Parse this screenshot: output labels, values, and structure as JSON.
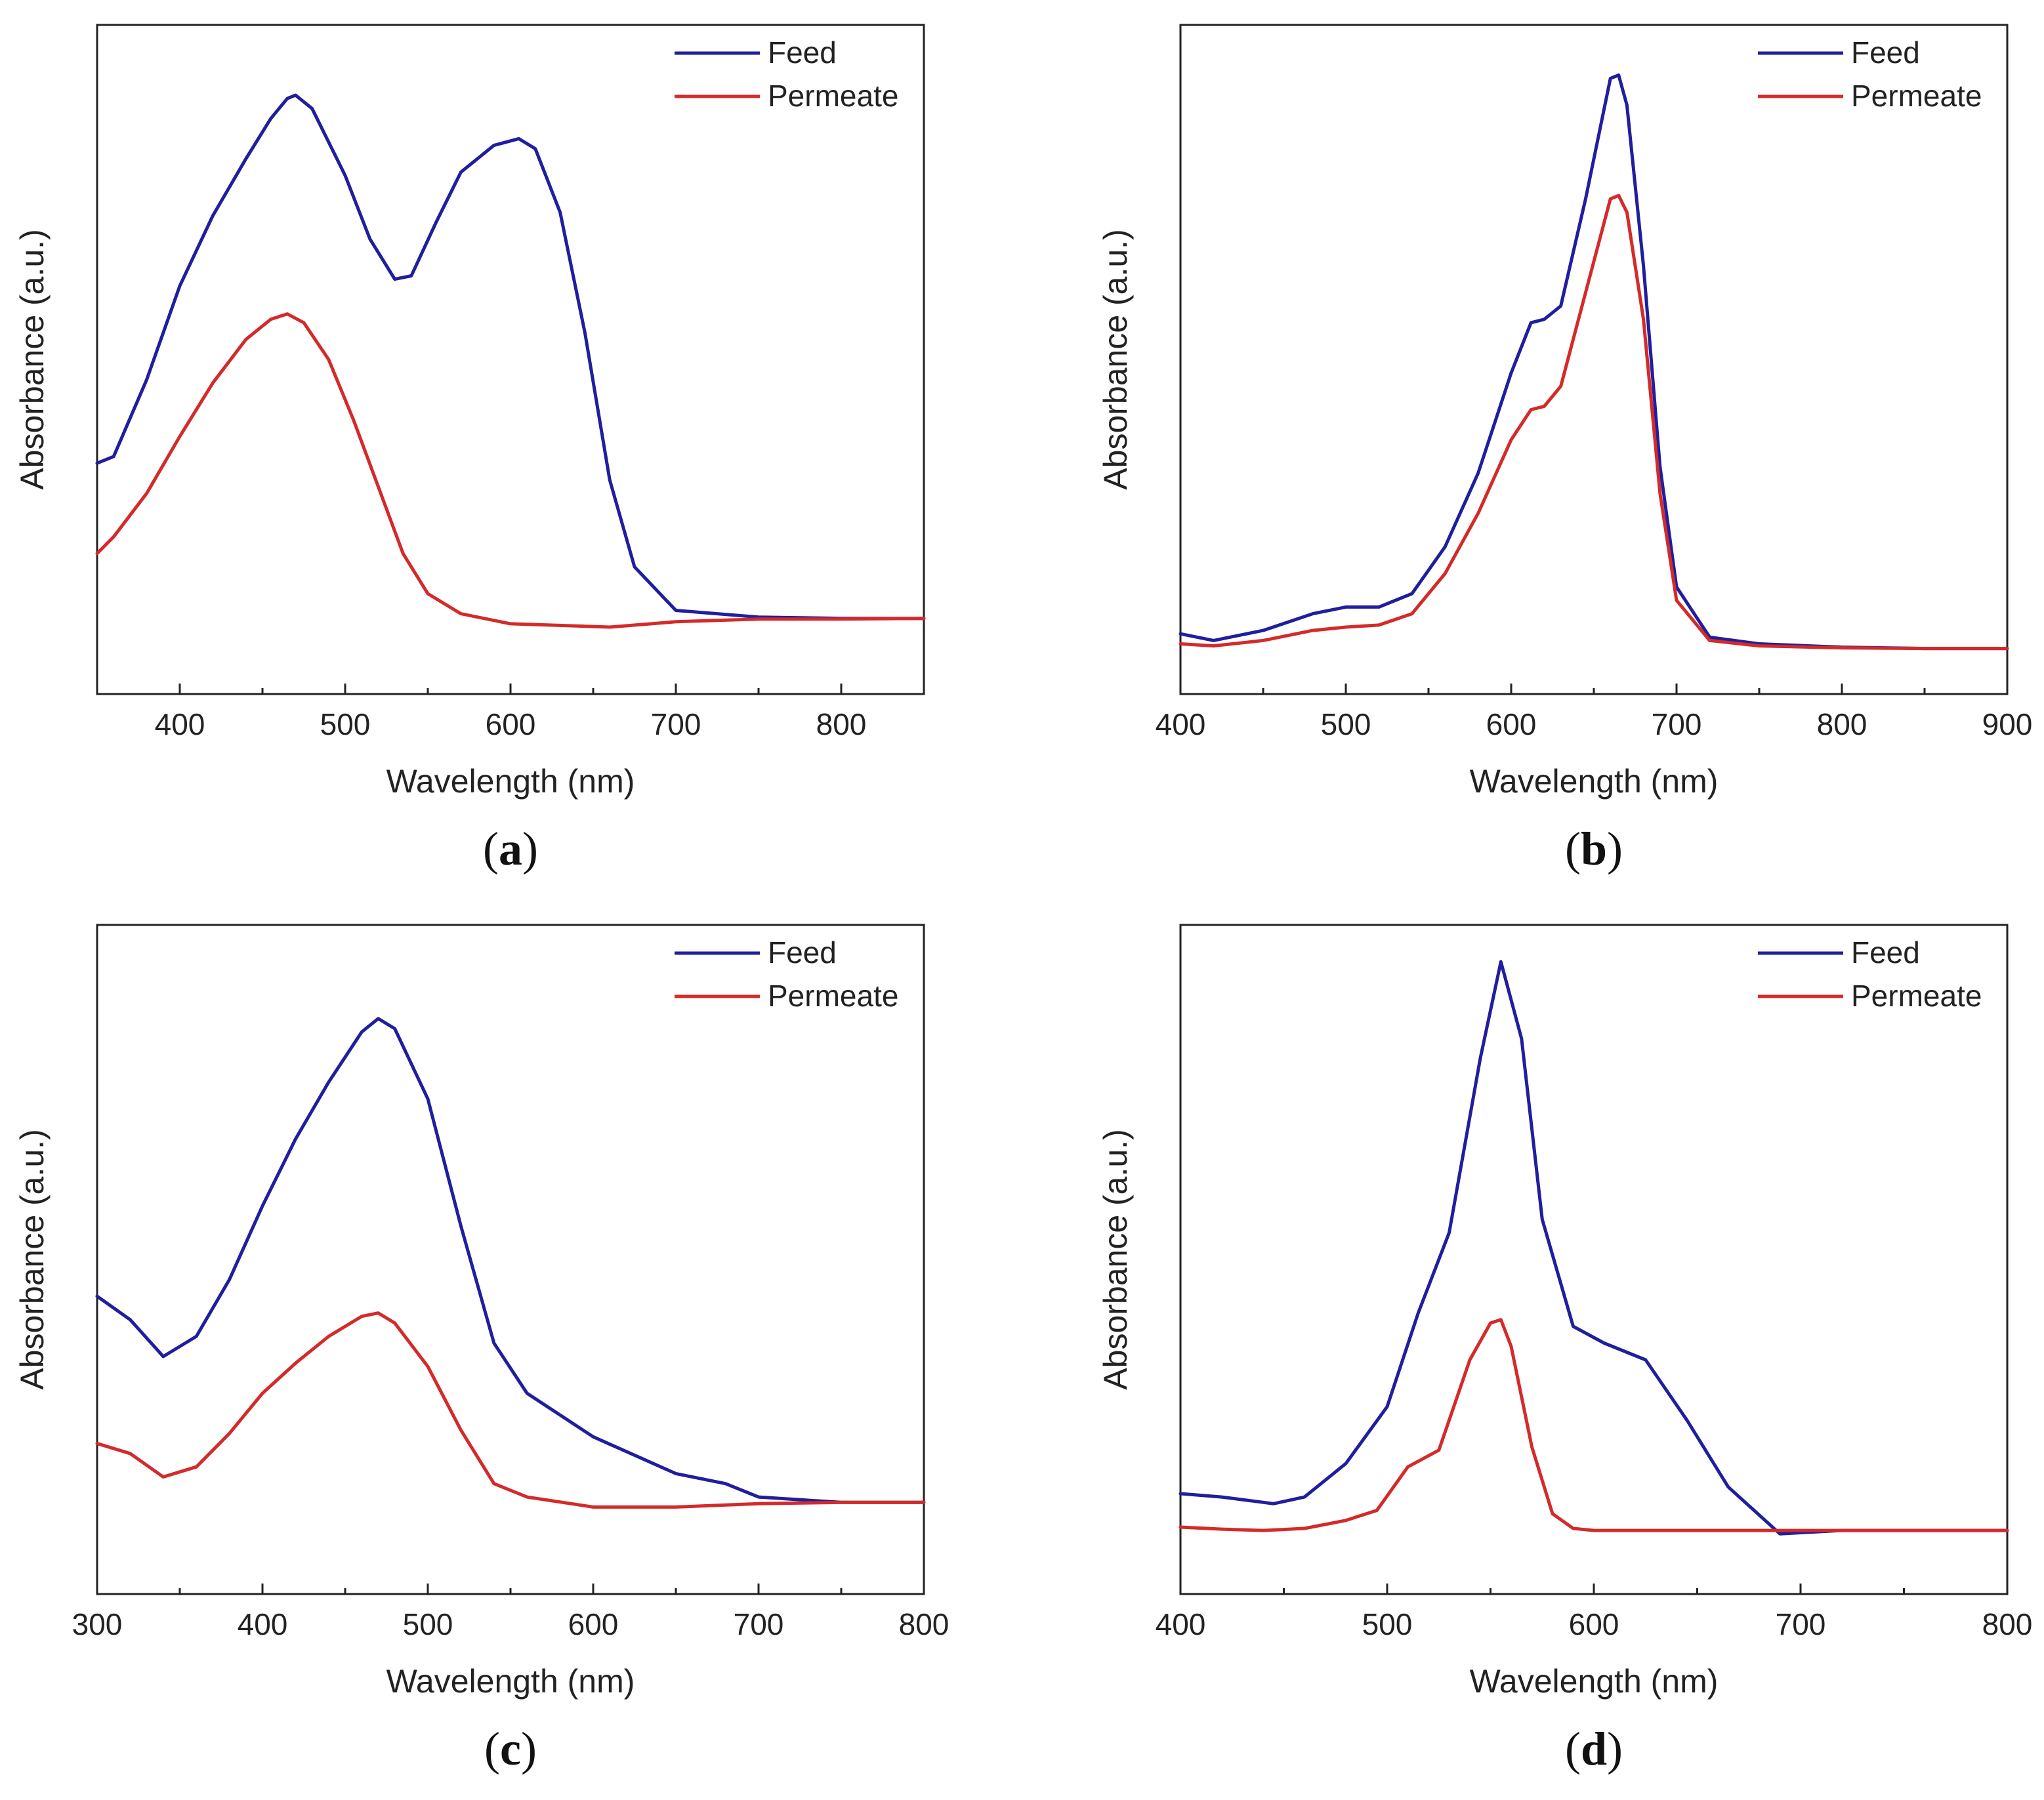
{
  "colors": {
    "feed": "#1f1f9e",
    "permeate": "#d42a2a",
    "axis": "#222222"
  },
  "chart_data": [
    {
      "type": "line",
      "panel": "(a)",
      "caption_letter": "a",
      "xlabel": "Wavelength (nm)",
      "ylabel": "Absorbance (a.u.)",
      "xlim": [
        350,
        850
      ],
      "ylim": [
        0,
        1.0
      ],
      "xticks": [
        400,
        500,
        600,
        700,
        800
      ],
      "legend": [
        "Feed",
        "Permeate"
      ],
      "legend_position": "top-right",
      "series": [
        {
          "name": "Feed",
          "x": [
            350,
            360,
            380,
            400,
            420,
            440,
            455,
            465,
            470,
            480,
            500,
            515,
            530,
            540,
            555,
            570,
            590,
            605,
            615,
            630,
            645,
            660,
            675,
            700,
            750,
            800,
            850
          ],
          "y": [
            0.345,
            0.355,
            0.47,
            0.61,
            0.715,
            0.8,
            0.86,
            0.89,
            0.895,
            0.875,
            0.775,
            0.68,
            0.62,
            0.625,
            0.705,
            0.78,
            0.82,
            0.83,
            0.815,
            0.72,
            0.54,
            0.32,
            0.19,
            0.125,
            0.115,
            0.113,
            0.113
          ]
        },
        {
          "name": "Permeate",
          "x": [
            350,
            360,
            380,
            400,
            420,
            440,
            455,
            465,
            475,
            490,
            505,
            520,
            535,
            550,
            570,
            600,
            660,
            700,
            750,
            800,
            850
          ],
          "y": [
            0.21,
            0.235,
            0.3,
            0.385,
            0.465,
            0.53,
            0.56,
            0.568,
            0.555,
            0.5,
            0.41,
            0.31,
            0.21,
            0.15,
            0.12,
            0.105,
            0.1,
            0.108,
            0.112,
            0.112,
            0.113
          ]
        }
      ]
    },
    {
      "type": "line",
      "panel": "(b)",
      "caption_letter": "b",
      "xlabel": "Wavelength (nm)",
      "ylabel": "Absorbance (a.u.)",
      "xlim": [
        400,
        900
      ],
      "ylim": [
        0,
        1.0
      ],
      "xticks": [
        400,
        500,
        600,
        700,
        800,
        900
      ],
      "legend": [
        "Feed",
        "Permeate"
      ],
      "legend_position": "top-right",
      "series": [
        {
          "name": "Feed",
          "x": [
            400,
            420,
            450,
            480,
            500,
            520,
            540,
            560,
            580,
            600,
            612,
            620,
            630,
            645,
            660,
            665,
            670,
            680,
            690,
            700,
            720,
            750,
            800,
            850,
            900
          ],
          "y": [
            0.09,
            0.08,
            0.095,
            0.12,
            0.13,
            0.13,
            0.15,
            0.22,
            0.33,
            0.48,
            0.555,
            0.56,
            0.58,
            0.74,
            0.92,
            0.925,
            0.88,
            0.64,
            0.34,
            0.16,
            0.085,
            0.075,
            0.07,
            0.068,
            0.068
          ]
        },
        {
          "name": "Permeate",
          "x": [
            400,
            420,
            450,
            480,
            500,
            520,
            540,
            560,
            580,
            600,
            612,
            620,
            630,
            645,
            660,
            665,
            670,
            680,
            690,
            700,
            720,
            750,
            800,
            850,
            900
          ],
          "y": [
            0.075,
            0.072,
            0.08,
            0.095,
            0.1,
            0.103,
            0.12,
            0.18,
            0.27,
            0.38,
            0.425,
            0.43,
            0.46,
            0.6,
            0.74,
            0.745,
            0.72,
            0.56,
            0.3,
            0.14,
            0.08,
            0.072,
            0.069,
            0.068,
            0.068
          ]
        }
      ]
    },
    {
      "type": "line",
      "panel": "(c)",
      "caption_letter": "c",
      "xlabel": "Wavelength (nm)",
      "ylabel": "Absorbance (a.u.)",
      "xlim": [
        300,
        800
      ],
      "ylim": [
        0,
        1.0
      ],
      "xticks": [
        300,
        400,
        500,
        600,
        700,
        800
      ],
      "legend": [
        "Feed",
        "Permeate"
      ],
      "legend_position": "top-right",
      "series": [
        {
          "name": "Feed",
          "x": [
            300,
            320,
            340,
            360,
            380,
            400,
            420,
            440,
            460,
            470,
            480,
            500,
            520,
            540,
            560,
            600,
            650,
            680,
            700,
            750,
            800
          ],
          "y": [
            0.445,
            0.41,
            0.355,
            0.385,
            0.47,
            0.58,
            0.68,
            0.765,
            0.84,
            0.86,
            0.845,
            0.74,
            0.55,
            0.375,
            0.3,
            0.235,
            0.18,
            0.165,
            0.145,
            0.137,
            0.137
          ]
        },
        {
          "name": "Permeate",
          "x": [
            300,
            320,
            340,
            360,
            380,
            400,
            420,
            440,
            460,
            470,
            480,
            500,
            520,
            540,
            560,
            600,
            650,
            700,
            750,
            800
          ],
          "y": [
            0.225,
            0.21,
            0.175,
            0.19,
            0.24,
            0.3,
            0.345,
            0.385,
            0.415,
            0.42,
            0.405,
            0.34,
            0.245,
            0.165,
            0.145,
            0.13,
            0.13,
            0.135,
            0.137,
            0.137
          ]
        }
      ]
    },
    {
      "type": "line",
      "panel": "(d)",
      "caption_letter": "d",
      "xlabel": "Wavelength (nm)",
      "ylabel": "Absorbance (a.u.)",
      "xlim": [
        400,
        800
      ],
      "ylim": [
        0,
        1.0
      ],
      "xticks": [
        400,
        500,
        600,
        700,
        800
      ],
      "legend": [
        "Feed",
        "Permeate"
      ],
      "legend_position": "top-right",
      "series": [
        {
          "name": "Feed",
          "x": [
            400,
            420,
            445,
            460,
            480,
            500,
            515,
            530,
            545,
            555,
            565,
            575,
            590,
            605,
            625,
            645,
            665,
            690,
            720,
            760,
            800
          ],
          "y": [
            0.15,
            0.145,
            0.135,
            0.145,
            0.195,
            0.28,
            0.42,
            0.54,
            0.8,
            0.945,
            0.83,
            0.56,
            0.4,
            0.375,
            0.35,
            0.26,
            0.16,
            0.09,
            0.095,
            0.095,
            0.095
          ]
        },
        {
          "name": "Permeate",
          "x": [
            400,
            420,
            440,
            460,
            480,
            495,
            510,
            525,
            540,
            550,
            555,
            560,
            570,
            580,
            590,
            600,
            650,
            700,
            750,
            800
          ],
          "y": [
            0.1,
            0.097,
            0.095,
            0.098,
            0.11,
            0.125,
            0.19,
            0.215,
            0.35,
            0.405,
            0.41,
            0.37,
            0.22,
            0.12,
            0.098,
            0.095,
            0.095,
            0.095,
            0.095,
            0.095
          ]
        }
      ]
    }
  ]
}
